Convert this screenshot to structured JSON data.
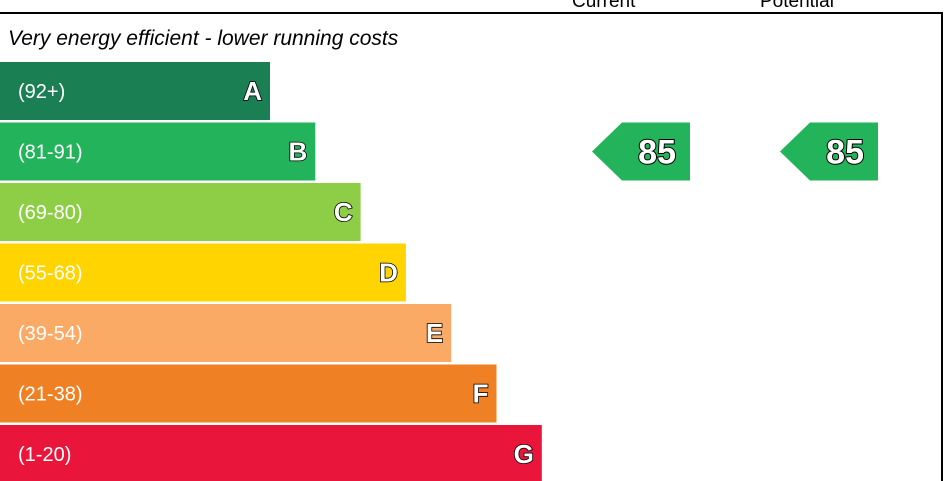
{
  "headers": {
    "current": "Current",
    "potential": "Potential"
  },
  "caption": "Very energy efficient - lower running costs",
  "chart_data": {
    "type": "bar",
    "categories": [
      "A",
      "B",
      "C",
      "D",
      "E",
      "F",
      "G"
    ],
    "bands": [
      {
        "letter": "A",
        "range": "(92+)",
        "color": "#1a7f53"
      },
      {
        "letter": "B",
        "range": "(81-91)",
        "color": "#23b45b"
      },
      {
        "letter": "C",
        "range": "(69-80)",
        "color": "#8dce46"
      },
      {
        "letter": "D",
        "range": "(55-68)",
        "color": "#ffd400"
      },
      {
        "letter": "E",
        "range": "(39-54)",
        "color": "#fbaa65"
      },
      {
        "letter": "F",
        "range": "(21-38)",
        "color": "#ef8023"
      },
      {
        "letter": "G",
        "range": "(1-20)",
        "color": "#e9153b"
      }
    ],
    "ratings": {
      "current": {
        "value": "85",
        "band": "B",
        "color": "#23b45b"
      },
      "potential": {
        "value": "85",
        "band": "B",
        "color": "#23b45b"
      }
    }
  }
}
